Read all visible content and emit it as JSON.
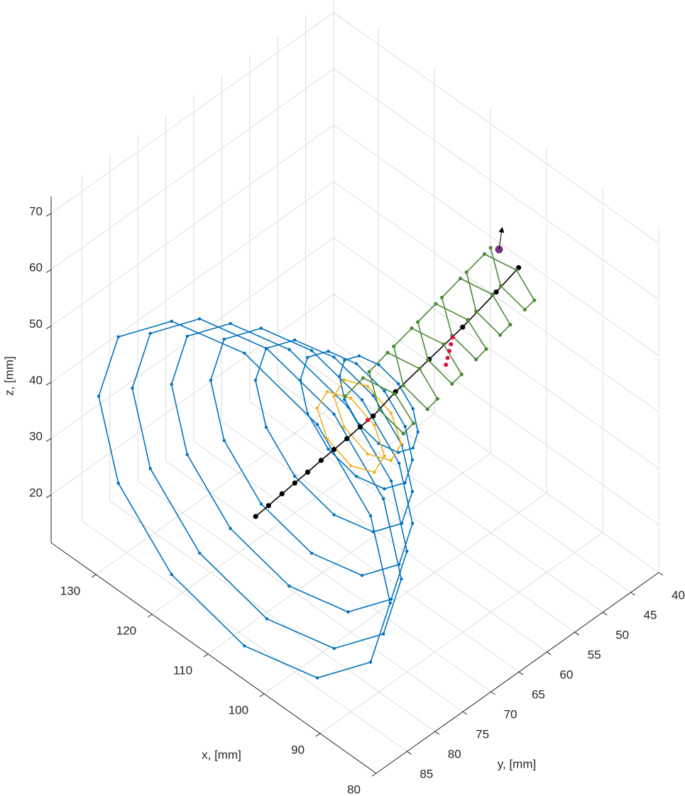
{
  "chart_data": {
    "type": "scatter3d",
    "xlabel": "x, [mm]",
    "ylabel": "y, [mm]",
    "zlabel": "z, [mm]",
    "xlim": [
      80,
      138
    ],
    "ylim": [
      40,
      90.5
    ],
    "zlim": [
      11.5,
      73
    ],
    "xticks": [
      80,
      90,
      100,
      110,
      120,
      130
    ],
    "yticks": [
      40,
      45,
      50,
      55,
      60,
      65,
      70,
      75,
      80,
      85
    ],
    "zticks": [
      20,
      30,
      40,
      50,
      60,
      70
    ],
    "grid": true,
    "series": [
      {
        "color": "#0072BD",
        "line": true,
        "closed": true,
        "marker_size": 2.2,
        "x": [
          132,
          128.5,
          119,
          106,
          93,
          83.5,
          80,
          83.5,
          93,
          106,
          119,
          128.5,
          null,
          130,
          126.8,
          118,
          106,
          94,
          85.2,
          82,
          85.2,
          94,
          106,
          118,
          126.8,
          null,
          127,
          124.2,
          116.5,
          106,
          95.5,
          87.8,
          85,
          87.8,
          95.5,
          106,
          116.5,
          124.2,
          null,
          124,
          121.6,
          115,
          106,
          97,
          90.4,
          88,
          90.4,
          97,
          106,
          115,
          121.6,
          null,
          120,
          118.1,
          113,
          106,
          99,
          93.9,
          92,
          93.9,
          99,
          106,
          113,
          118.1,
          null,
          116,
          114.7,
          111,
          106,
          101,
          97.3,
          96,
          97.3,
          101,
          106,
          111,
          114.7,
          null,
          113,
          112.1,
          109.5,
          106,
          102.5,
          99.9,
          99,
          99.9,
          102.5,
          106,
          109.5,
          112.1
        ],
        "y": [
          88,
          88,
          88,
          88,
          88,
          88,
          88,
          88,
          88,
          88,
          88,
          88,
          null,
          84,
          84,
          84,
          84,
          84,
          84,
          84,
          84,
          84,
          84,
          84,
          84,
          null,
          80,
          80,
          80,
          80,
          80,
          80,
          80,
          80,
          80,
          80,
          80,
          80,
          null,
          76,
          76,
          76,
          76,
          76,
          76,
          76,
          76,
          76,
          76,
          76,
          76,
          null,
          72,
          72,
          72,
          72,
          72,
          72,
          72,
          72,
          72,
          72,
          72,
          72,
          null,
          68,
          68,
          68,
          68,
          68,
          68,
          68,
          68,
          68,
          68,
          68,
          68,
          null,
          64,
          64,
          64,
          64,
          64,
          64,
          64,
          64,
          64,
          64,
          64,
          64
        ],
        "z": [
          40,
          53,
          62.5,
          66,
          62.5,
          53,
          40,
          27,
          17.5,
          14,
          17.5,
          27,
          null,
          40,
          52,
          60.8,
          64,
          60.8,
          52,
          40,
          28,
          19.2,
          16,
          19.2,
          28,
          null,
          40,
          50.5,
          58.2,
          61,
          58.2,
          50.5,
          40,
          29.5,
          21.8,
          19,
          21.8,
          29.5,
          null,
          40,
          49,
          55.6,
          58,
          55.6,
          49,
          40,
          31,
          24.4,
          22,
          24.4,
          31,
          null,
          40,
          47,
          52.1,
          54,
          52.1,
          47,
          40,
          33,
          27.9,
          26,
          27.9,
          33,
          null,
          40,
          45,
          48.7,
          50,
          48.7,
          45,
          40,
          35,
          31.3,
          30,
          31.3,
          35,
          null,
          40,
          43.5,
          46.1,
          47,
          46.1,
          43.5,
          40,
          36.5,
          33.9,
          33,
          33.9,
          36.5
        ]
      },
      {
        "color": "#EDB120",
        "line": true,
        "closed": true,
        "marker_size": 2.2,
        "x": [
          111,
          109.2,
          105,
          100.8,
          99,
          100.8,
          105,
          109.2,
          null,
          111,
          109.2,
          105,
          100.8,
          99,
          100.8,
          105,
          109.2
        ],
        "y": [
          70,
          70,
          70,
          70,
          70,
          70,
          70,
          70,
          null,
          67,
          67,
          67,
          67,
          67,
          67,
          67,
          67
        ],
        "z": [
          40,
          44.2,
          46,
          44.2,
          40,
          35.8,
          34,
          35.8,
          null,
          40,
          44.2,
          46,
          44.2,
          40,
          35.8,
          34,
          35.8
        ]
      },
      {
        "color": "#000000",
        "line": true,
        "closed": false,
        "marker_size": 3.6,
        "x": [
          105,
          105,
          105,
          105,
          105,
          105,
          105,
          105,
          105,
          105,
          105,
          105,
          105,
          105,
          105
        ],
        "y": [
          87,
          84.7,
          82.3,
          80,
          77.7,
          75.3,
          73,
          70.7,
          68.3,
          66,
          62,
          56,
          50,
          44,
          40
        ],
        "z": [
          37,
          37.3,
          37.7,
          38,
          38.3,
          38.7,
          39,
          39.3,
          39.7,
          40,
          41.5,
          43,
          44.5,
          46.5,
          48
        ]
      },
      {
        "color": "#4A8A36",
        "line": true,
        "closed": false,
        "marker_size": 2.6,
        "x": [
          110,
          107.5,
          102.5,
          100,
          102.5,
          107.5,
          110,
          107.5,
          102.5,
          100,
          102.5,
          107.5,
          110,
          107.5,
          102.5,
          100,
          102.5,
          107.5,
          110,
          107.5,
          102.5,
          100,
          102.5,
          107.5,
          110,
          107.5,
          102.5,
          100,
          102.5,
          107.5,
          110,
          107.5,
          102.5,
          100,
          102.5,
          107.5,
          110
        ],
        "y": [
          66,
          65.3,
          64.6,
          63.8,
          63.1,
          62.4,
          61.7,
          60.9,
          60.2,
          59.5,
          58.8,
          58.1,
          57.3,
          56.6,
          55.9,
          55.2,
          54.4,
          53.7,
          53,
          52.3,
          51.6,
          50.8,
          50.1,
          49.4,
          48.7,
          47.9,
          47.2,
          46.5,
          45.8,
          45.1,
          44.3,
          43.6,
          42.9,
          42.2,
          41.4,
          40.7,
          40
        ],
        "z": [
          40,
          44.5,
          44.7,
          40.7,
          36.6,
          36.8,
          41.3,
          45.9,
          46.1,
          42,
          37.9,
          38.1,
          42.7,
          47.2,
          47.4,
          43.3,
          39.3,
          39.5,
          44,
          48.5,
          48.7,
          44.7,
          40.6,
          40.8,
          45.3,
          49.9,
          50.1,
          46,
          41.9,
          42.1,
          46.7,
          51.2,
          51.4,
          47.3,
          43.3,
          43.5,
          48
        ]
      },
      {
        "color": "#E0103A",
        "line": false,
        "closed": false,
        "marker_size": 3,
        "x": [
          105,
          100,
          100.5,
          101,
          101.5,
          102
        ],
        "y": [
          67,
          58,
          57.2,
          56.4,
          55.6,
          54.8
        ],
        "z": [
          40,
          47,
          47.3,
          47.6,
          47.9,
          48.2
        ]
      },
      {
        "color": "#7E2F8E",
        "line": false,
        "closed": false,
        "marker_size": 5.5,
        "x": [
          105
        ],
        "y": [
          43.5
        ],
        "z": [
          53.7
        ]
      }
    ]
  }
}
